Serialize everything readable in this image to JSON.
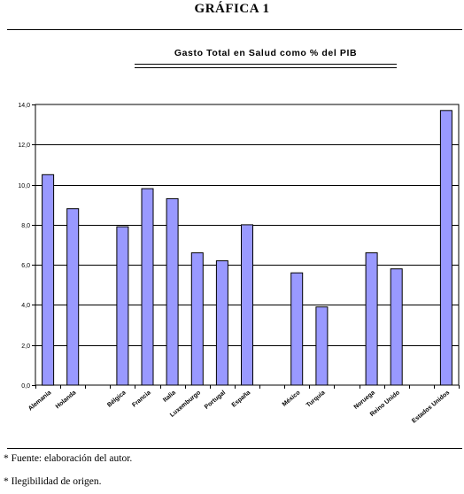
{
  "header": {
    "title": "GRÁFICA 1"
  },
  "chart_data": {
    "type": "bar",
    "title": "Gasto Total en Salud como % del PIB",
    "xlabel": "",
    "ylabel": "",
    "ylim": [
      0,
      14
    ],
    "yticks": [
      "0,0",
      "2,0",
      "4,0",
      "6,0",
      "8,0",
      "10,0",
      "12,0",
      "14,0"
    ],
    "grid": true,
    "bar_color": "#9999ff",
    "categories": [
      "Alemania",
      "Holanda",
      "",
      "Bélgica",
      "Francia",
      "Italia",
      "Luxemburgo",
      "Portugal",
      "España",
      "",
      "México",
      "Turquía",
      "",
      "Noruega",
      "Reino Unido",
      "",
      "Estados Unidos"
    ],
    "values": [
      10.5,
      8.8,
      null,
      7.9,
      9.8,
      9.3,
      6.6,
      6.2,
      8.0,
      null,
      5.6,
      3.9,
      null,
      6.6,
      5.8,
      null,
      13.7
    ]
  },
  "notes": {
    "source": "* Fuente: elaboración del autor.",
    "legibility": "* Ilegibilidad de origen."
  }
}
